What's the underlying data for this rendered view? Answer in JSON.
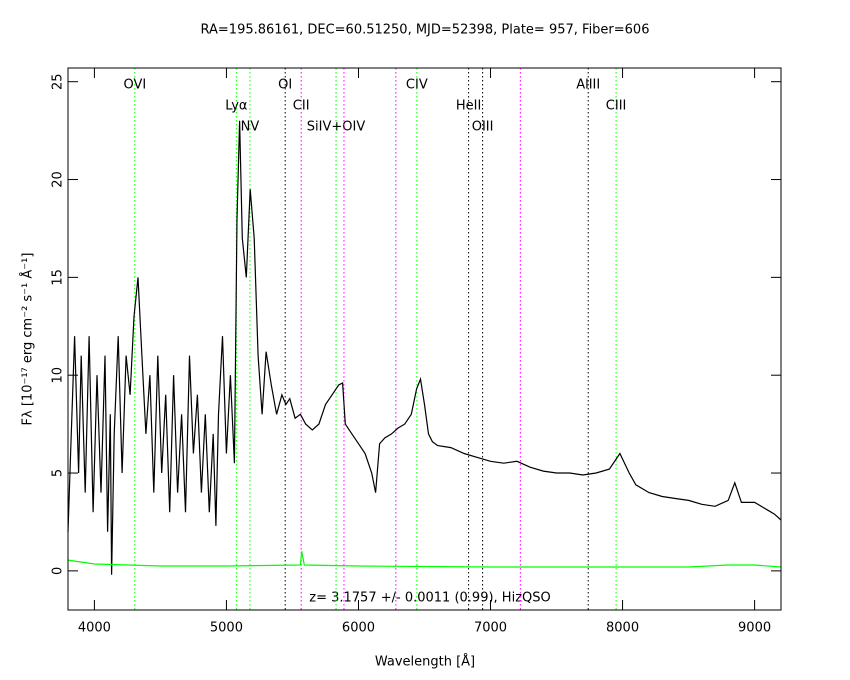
{
  "chart_data": {
    "type": "line",
    "title": "RA=195.86161, DEC=60.51250, MJD=52398, Plate= 957, Fiber=606",
    "x_label": "Wavelength [Å]",
    "y_label": "Fλ [10⁻¹⁷ erg cm⁻² s⁻¹ Å⁻¹]",
    "annotation": "z= 3.1757 +/- 0.0011 (0.99), HizQSO",
    "xlim": [
      3800,
      9200
    ],
    "xticks": [
      4000,
      5000,
      6000,
      7000,
      8000,
      9000
    ],
    "ylim": [
      -2,
      25.7
    ],
    "yticks": [
      0,
      5,
      10,
      15,
      20,
      25
    ],
    "series": [
      {
        "color": "#000000",
        "x": [
          3800,
          3820,
          3850,
          3880,
          3900,
          3930,
          3960,
          3990,
          4020,
          4050,
          4080,
          4100,
          4120,
          4130,
          4150,
          4180,
          4210,
          4240,
          4270,
          4300,
          4330,
          4360,
          4390,
          4420,
          4450,
          4480,
          4510,
          4540,
          4570,
          4600,
          4630,
          4660,
          4690,
          4720,
          4750,
          4780,
          4810,
          4840,
          4870,
          4900,
          4920,
          4940,
          4970,
          5000,
          5030,
          5060,
          5080,
          5100,
          5120,
          5150,
          5180,
          5210,
          5240,
          5270,
          5300,
          5340,
          5380,
          5420,
          5450,
          5480,
          5520,
          5560,
          5600,
          5650,
          5700,
          5750,
          5800,
          5850,
          5880,
          5900,
          5950,
          6000,
          6050,
          6100,
          6130,
          6160,
          6200,
          6250,
          6300,
          6350,
          6400,
          6440,
          6470,
          6500,
          6530,
          6560,
          6600,
          6700,
          6800,
          6900,
          7000,
          7100,
          7200,
          7300,
          7400,
          7500,
          7600,
          7700,
          7800,
          7900,
          7980,
          8050,
          8100,
          8200,
          8300,
          8400,
          8500,
          8600,
          8700,
          8800,
          8850,
          8900,
          9000,
          9100,
          9150,
          9200
        ],
        "values": [
          2,
          6,
          12,
          5,
          11,
          4,
          12,
          3,
          10,
          4,
          11,
          2,
          8,
          -0.2,
          7,
          12,
          5,
          11,
          9,
          13,
          15,
          11,
          7,
          10,
          4,
          11,
          5,
          9,
          3,
          10,
          4,
          8,
          3,
          11,
          6,
          9,
          4,
          8,
          3,
          7,
          2.3,
          8,
          12,
          6,
          10,
          5.5,
          18,
          23,
          17,
          15,
          19.5,
          17,
          11,
          8,
          11.2,
          9.5,
          8,
          9,
          8.5,
          8.8,
          7.8,
          8,
          7.5,
          7.2,
          7.5,
          8.5,
          9,
          9.5,
          9.6,
          7.5,
          7,
          6.5,
          6,
          5,
          4,
          6.5,
          6.8,
          7,
          7.3,
          7.5,
          8,
          9.3,
          9.8,
          8.5,
          7,
          6.6,
          6.4,
          6.3,
          6,
          5.8,
          5.6,
          5.5,
          5.6,
          5.3,
          5.1,
          5,
          5,
          4.9,
          5,
          5.2,
          6,
          5,
          4.4,
          4,
          3.8,
          3.7,
          3.6,
          3.4,
          3.3,
          3.6,
          4.5,
          3.5,
          3.5,
          3.1,
          2.9,
          2.6
        ]
      },
      {
        "color": "#00ff00",
        "x": [
          3800,
          4000,
          4500,
          5000,
          5560,
          5570,
          5590,
          6000,
          7000,
          8000,
          8500,
          8800,
          9000,
          9200
        ],
        "values": [
          0.55,
          0.35,
          0.25,
          0.25,
          0.3,
          1.0,
          0.3,
          0.25,
          0.2,
          0.2,
          0.2,
          0.3,
          0.3,
          0.2
        ]
      }
    ],
    "lines": [
      {
        "x": 4306,
        "color": "#00ff00",
        "label": "OVI"
      },
      {
        "x": 5075,
        "color": "#00ff00",
        "label": "Lyα"
      },
      {
        "x": 5178,
        "color": "#00ff00",
        "label": "NV"
      },
      {
        "x": 5445,
        "color": "#000000",
        "label": "OI"
      },
      {
        "x": 5566,
        "color": "#ff00ff",
        "label": "CII"
      },
      {
        "x": 5830,
        "color": "#00ff00",
        "label": "SiIV+OIV"
      },
      {
        "x": 5890,
        "color": "#ff00ff"
      },
      {
        "x": 6283,
        "color": "#ff00ff"
      },
      {
        "x": 6442,
        "color": "#00ff00",
        "label": "CIV"
      },
      {
        "x": 6834,
        "color": "#000000",
        "label": "HeII"
      },
      {
        "x": 6940,
        "color": "#000000",
        "label": "OIII"
      },
      {
        "x": 7226,
        "color": "#ff00ff"
      },
      {
        "x": 7740,
        "color": "#000000",
        "label": "AlIII"
      },
      {
        "x": 7951,
        "color": "#00ff00",
        "label": "CIII"
      }
    ]
  }
}
